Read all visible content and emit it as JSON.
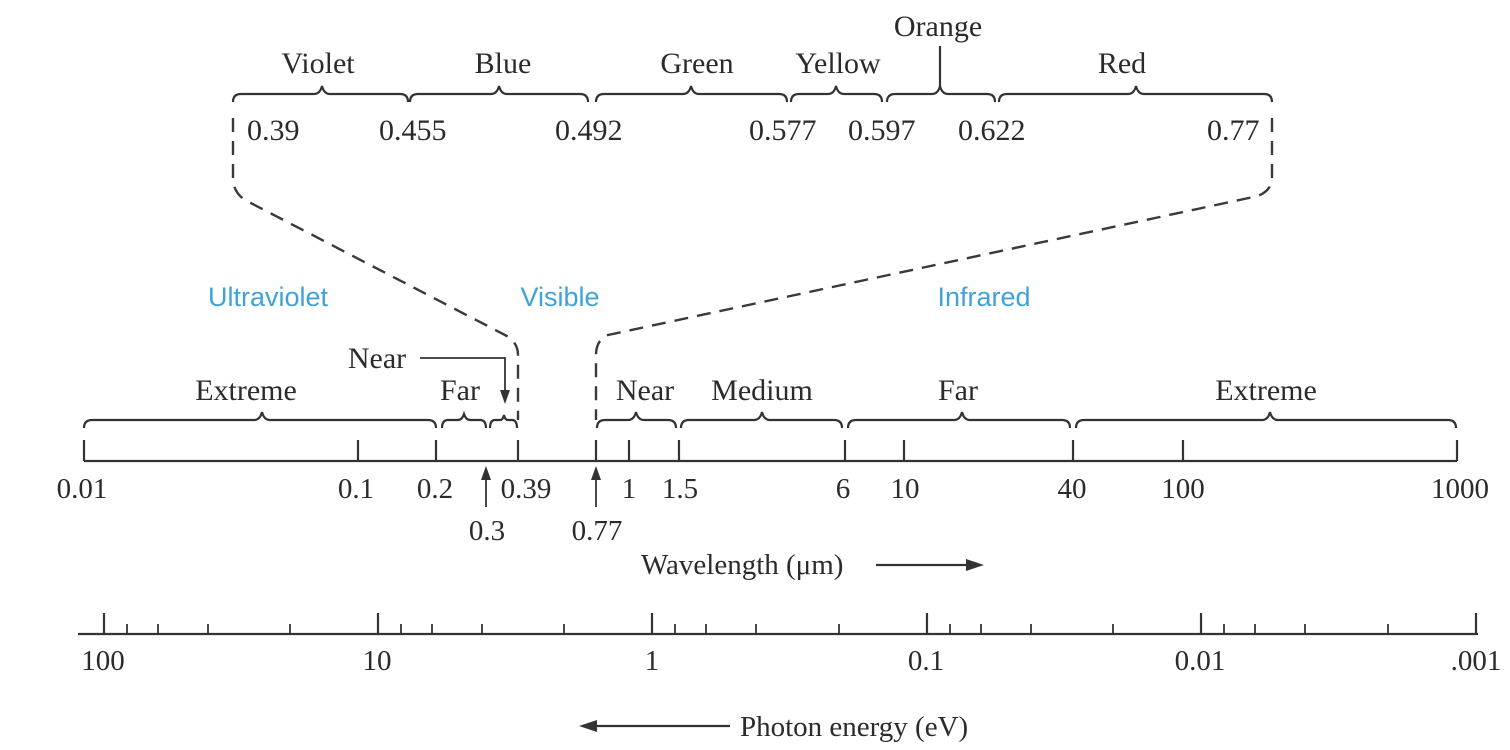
{
  "colors": {
    "region_label": "#3fa3d8",
    "ink": "#2b2b2b"
  },
  "regions": {
    "ultraviolet": "Ultraviolet",
    "visible": "Visible",
    "infrared": "Infrared"
  },
  "visible_bands": [
    {
      "name": "Violet",
      "from": "0.39",
      "to": "0.455"
    },
    {
      "name": "Blue",
      "from": "0.455",
      "to": "0.492"
    },
    {
      "name": "Green",
      "from": "0.492",
      "to": "0.577"
    },
    {
      "name": "Yellow",
      "from": "0.577",
      "to": "0.597"
    },
    {
      "name": "Orange",
      "from": "0.597",
      "to": "0.622"
    },
    {
      "name": "Red",
      "from": "0.622",
      "to": "0.77"
    }
  ],
  "visible_values": [
    "0.39",
    "0.455",
    "0.492",
    "0.577",
    "0.597",
    "0.622",
    "0.77"
  ],
  "wavelength_axis": {
    "label": "Wavelength (μm)",
    "tick_labels": [
      "0.01",
      "0.1",
      "0.2",
      "0.39",
      "1",
      "1.5",
      "6",
      "10",
      "40",
      "100",
      "1000"
    ],
    "arrow_labels": [
      "0.3",
      "0.77"
    ]
  },
  "uv_subbands": [
    {
      "name": "Extreme",
      "from": "0.01",
      "to": "0.2"
    },
    {
      "name": "Far",
      "from": "0.2",
      "to": "0.3"
    },
    {
      "name": "Near",
      "from": "0.3",
      "to": "0.39"
    }
  ],
  "ir_subbands": [
    {
      "name": "Near",
      "from": "0.77",
      "to": "1.5"
    },
    {
      "name": "Medium",
      "from": "1.5",
      "to": "6"
    },
    {
      "name": "Far",
      "from": "6",
      "to": "40"
    },
    {
      "name": "Extreme",
      "from": "40",
      "to": "1000"
    }
  ],
  "energy_axis": {
    "label": "Photon energy (eV)",
    "tick_labels": [
      "100",
      "10",
      "1",
      "0.1",
      "0.01",
      ".001"
    ]
  }
}
